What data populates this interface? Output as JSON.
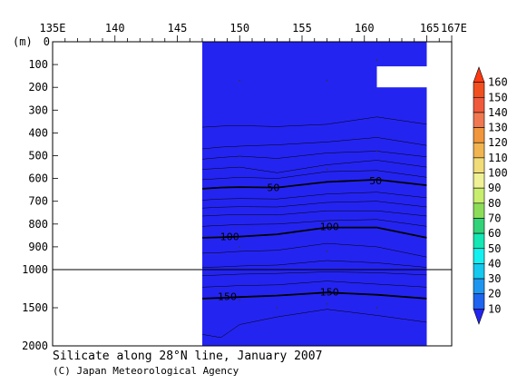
{
  "chart_data": {
    "type": "heatmap",
    "title": "Silicate along 28°N line, January 2007",
    "credit": "(C) Japan Meteorological Agency",
    "x_ticks": [
      "135E",
      "140",
      "145",
      "150",
      "155",
      "160",
      "165",
      "167E"
    ],
    "x_tick_values": [
      135,
      140,
      145,
      150,
      155,
      160,
      165,
      167
    ],
    "xlim": [
      135,
      167
    ],
    "y_unit_label": "(m)",
    "y_ticks_upper": [
      "0",
      "100",
      "200",
      "300",
      "400",
      "500",
      "600",
      "700",
      "800",
      "900",
      "1000"
    ],
    "y_tick_values_upper": [
      0,
      100,
      200,
      300,
      400,
      500,
      600,
      700,
      800,
      900,
      1000
    ],
    "y_ticks_lower": [
      "1500",
      "2000"
    ],
    "y_tick_values_lower": [
      1500,
      2000
    ],
    "ylim": [
      0,
      2000
    ],
    "data_extent_lon": [
      147,
      165
    ],
    "colorbar_labels": [
      "160",
      "150",
      "140",
      "130",
      "120",
      "110",
      "100",
      "90",
      "80",
      "70",
      "60",
      "50",
      "40",
      "30",
      "20",
      "10"
    ],
    "colorbar_values": [
      160,
      150,
      140,
      130,
      120,
      110,
      100,
      90,
      80,
      70,
      60,
      50,
      40,
      30,
      20,
      10
    ],
    "colors": [
      "#2424f0",
      "#1e64ee",
      "#1e96f0",
      "#14c8ee",
      "#14f0f0",
      "#14e6b4",
      "#32d278",
      "#8cdc5a",
      "#c8ee6e",
      "#f0f096",
      "#f0dc78",
      "#f0b450",
      "#f0963c",
      "#f07850",
      "#f05a3c",
      "#f05020",
      "#ff3a12"
    ],
    "contour_labels": [
      {
        "text": "50",
        "lon": 152.7,
        "depth": 640
      },
      {
        "text": "50",
        "lon": 160.9,
        "depth": 610
      },
      {
        "text": "100",
        "lon": 149.2,
        "depth": 855
      },
      {
        "text": "100",
        "lon": 157.2,
        "depth": 810
      },
      {
        "text": "150",
        "lon": 149.0,
        "depth": 1350
      },
      {
        "text": "150",
        "lon": 157.2,
        "depth": 1290
      }
    ],
    "grid": false
  }
}
